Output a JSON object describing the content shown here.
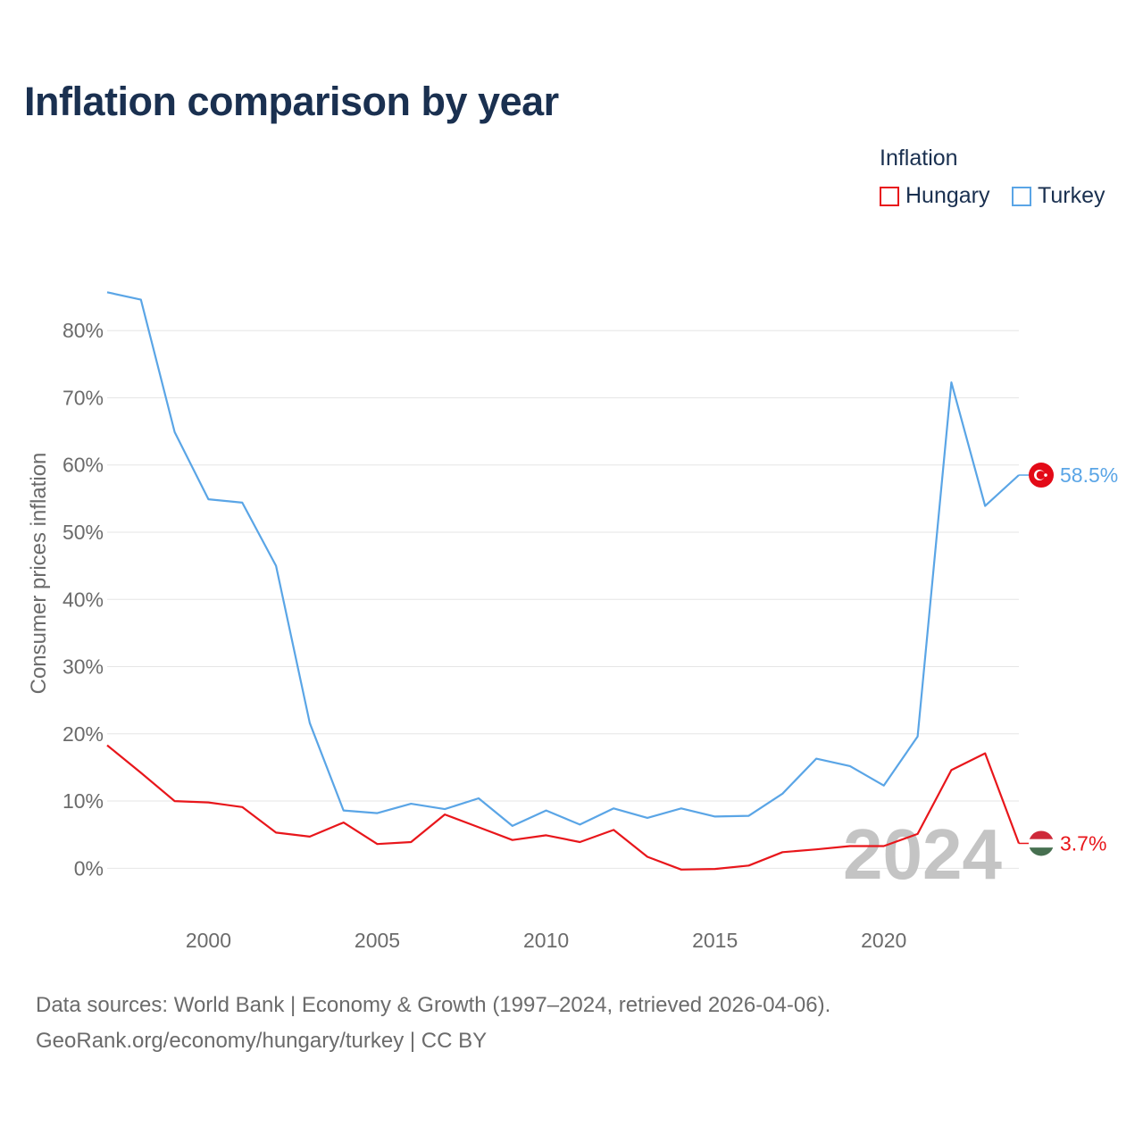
{
  "title": "Inflation comparison by year",
  "legend": {
    "title": "Inflation",
    "items": [
      {
        "name": "Hungary",
        "color": "#e8161b"
      },
      {
        "name": "Turkey",
        "color": "#5aa5e6"
      }
    ]
  },
  "chart_data": {
    "type": "line",
    "ylabel": "Consumer prices inflation",
    "xlabel": "",
    "ylim": [
      -7,
      88
    ],
    "xlim": [
      1997,
      2024
    ],
    "yticks": [
      0,
      10,
      20,
      30,
      40,
      50,
      60,
      70,
      80
    ],
    "ytick_labels": [
      "0%",
      "10%",
      "20%",
      "30%",
      "40%",
      "50%",
      "60%",
      "70%",
      "80%"
    ],
    "xticks": [
      2000,
      2005,
      2010,
      2015,
      2020
    ],
    "xtick_labels": [
      "2000",
      "2005",
      "2010",
      "2015",
      "2020"
    ],
    "x": [
      1997,
      1998,
      1999,
      2000,
      2001,
      2002,
      2003,
      2004,
      2005,
      2006,
      2007,
      2008,
      2009,
      2010,
      2011,
      2012,
      2013,
      2014,
      2015,
      2016,
      2017,
      2018,
      2019,
      2020,
      2021,
      2022,
      2023,
      2024
    ],
    "series": [
      {
        "name": "Turkey",
        "color": "#5aa5e6",
        "values": [
          85.7,
          84.6,
          64.9,
          54.9,
          54.4,
          45.0,
          21.6,
          8.6,
          8.2,
          9.6,
          8.8,
          10.4,
          6.3,
          8.6,
          6.5,
          8.9,
          7.5,
          8.9,
          7.7,
          7.8,
          11.1,
          16.3,
          15.2,
          12.3,
          19.6,
          72.3,
          53.9,
          58.5
        ],
        "end_label": "58.5%"
      },
      {
        "name": "Hungary",
        "color": "#e8161b",
        "values": [
          18.3,
          14.2,
          10.0,
          9.8,
          9.1,
          5.3,
          4.7,
          6.8,
          3.6,
          3.9,
          8.0,
          6.1,
          4.2,
          4.9,
          3.9,
          5.7,
          1.7,
          -0.2,
          -0.1,
          0.4,
          2.4,
          2.8,
          3.3,
          3.3,
          5.1,
          14.6,
          17.1,
          3.7
        ],
        "end_label": "3.7%"
      }
    ],
    "year_watermark": "2024"
  },
  "source": {
    "line1": "Data sources: World Bank | Economy & Growth (1997–2024, retrieved 2026-04-06).",
    "line2": "GeoRank.org/economy/hungary/turkey | CC BY"
  }
}
